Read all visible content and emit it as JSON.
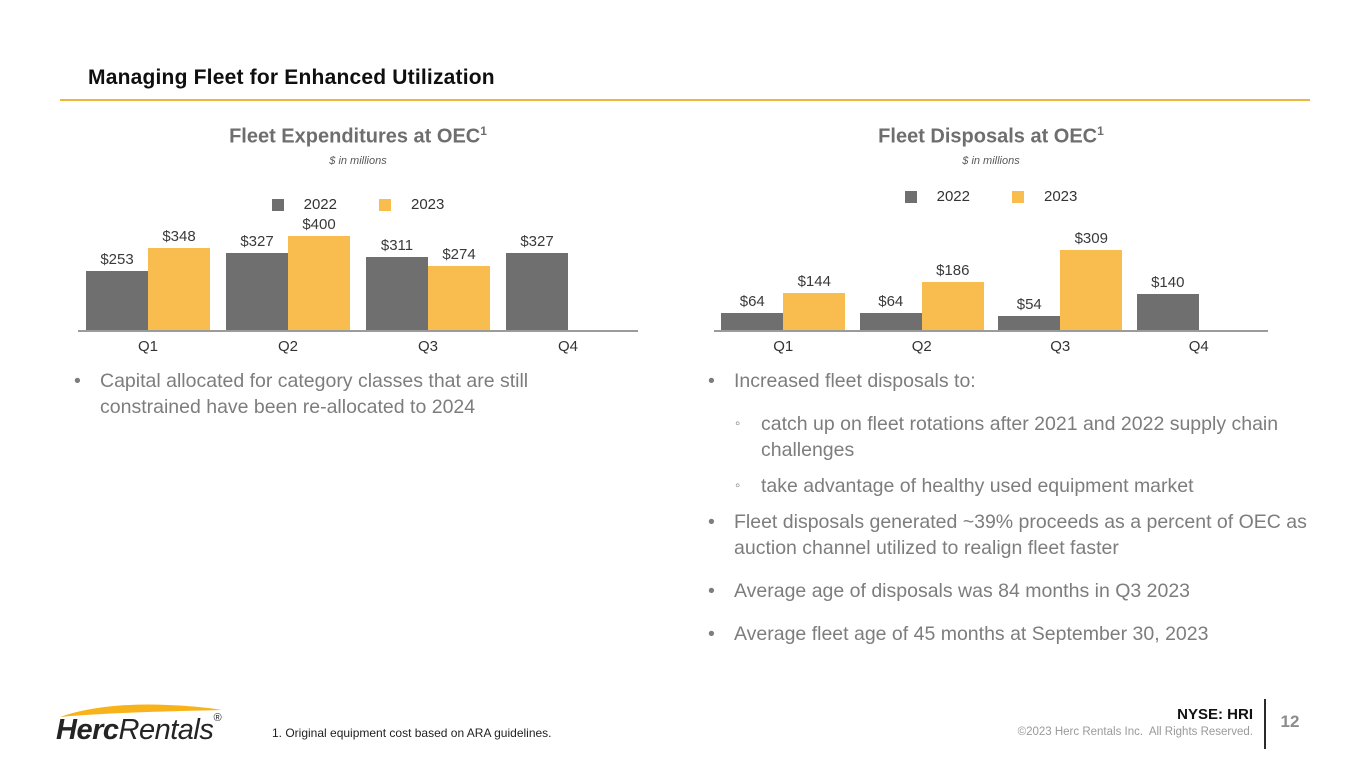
{
  "colors": {
    "bar_gray": "#6f6f6f",
    "bar_yellow": "#f9bc4e",
    "accent_rule": "#eeb63c",
    "logo_yellow": "#f7b319",
    "axis_line": "#9b9b9b",
    "body_text": "#7d7d7d"
  },
  "header": {
    "title": "Managing Fleet for Enhanced Utilization"
  },
  "chart_data": [
    {
      "type": "bar",
      "title": "Fleet Expenditures at OEC",
      "title_sup": "1",
      "subtitle": "$ in millions",
      "categories": [
        "Q1",
        "Q2",
        "Q3",
        "Q4"
      ],
      "series": [
        {
          "name": "2022",
          "color": "#6f6f6f",
          "values": [
            253,
            327,
            311,
            327
          ],
          "labels": [
            "$253",
            "$327",
            "$311",
            "$327"
          ]
        },
        {
          "name": "2023",
          "color": "#f9bc4e",
          "values": [
            348,
            400,
            274,
            null
          ],
          "labels": [
            "$348",
            "$400",
            "$274",
            null
          ]
        }
      ],
      "ylim": [
        0,
        400
      ],
      "grid": false,
      "legend_position": "top"
    },
    {
      "type": "bar",
      "title": "Fleet Disposals at OEC",
      "title_sup": "1",
      "subtitle": "$ in millions",
      "categories": [
        "Q1",
        "Q2",
        "Q3",
        "Q4"
      ],
      "series": [
        {
          "name": "2022",
          "color": "#6f6f6f",
          "values": [
            64,
            64,
            54,
            140
          ],
          "labels": [
            "$64",
            "$64",
            "$54",
            "$140"
          ]
        },
        {
          "name": "2023",
          "color": "#f9bc4e",
          "values": [
            144,
            186,
            309,
            null
          ],
          "labels": [
            "$144",
            "$186",
            "$309",
            null
          ]
        }
      ],
      "ylim": [
        0,
        309
      ],
      "grid": false,
      "legend_position": "top"
    }
  ],
  "bullets": {
    "left": [
      {
        "level": 1,
        "text": "Capital allocated for category classes that are still constrained have been re-allocated to 2024"
      }
    ],
    "right": [
      {
        "level": 1,
        "text": "Increased fleet disposals to:"
      },
      {
        "level": 2,
        "text": "catch up on fleet rotations after 2021 and 2022 supply chain challenges"
      },
      {
        "level": 2,
        "text": "take advantage of healthy used equipment market"
      },
      {
        "level": 1,
        "text": "Fleet disposals generated ~39% proceeds as a percent of OEC as auction channel utilized to realign fleet faster"
      },
      {
        "level": 1,
        "text": "Average age of disposals was 84 months in Q3 2023"
      },
      {
        "level": 1,
        "text": "Average fleet age of 45 months at September 30, 2023"
      }
    ]
  },
  "footer": {
    "logo_bold": "Herc",
    "logo_regular": "Rentals",
    "logo_registered": "®",
    "footnote": "1. Original equipment cost based on ARA guidelines.",
    "ticker": "NYSE: HRI",
    "copyright": "©2023 Herc Rentals Inc.  All Rights Reserved.",
    "page_number": "12"
  }
}
